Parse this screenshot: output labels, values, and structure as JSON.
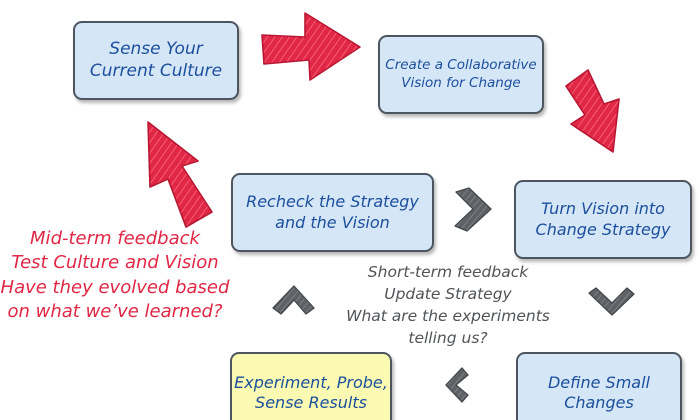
{
  "diagram": {
    "boxes": {
      "sense_culture": "Sense Your\nCurrent Culture",
      "collaborative_vision": "Create a Collaborative\nVision for Change",
      "change_strategy": "Turn Vision into\nChange Strategy",
      "recheck_strategy": "Recheck the Strategy\nand the Vision",
      "experiment": "Experiment, Probe,\nSense Results",
      "small_changes": "Define Small\nChanges"
    },
    "midterm_feedback": "Mid-term feedback\nTest Culture and Vision\nHave they evolved based\non what we’ve learned?",
    "shortterm_feedback": "Short-term feedback\nUpdate Strategy\nWhat are the experiments\ntelling us?"
  },
  "colors": {
    "box_fill": "#d5e6f7",
    "box_fill_highlight": "#fafab2",
    "box_text": "#1c4f9c",
    "red_arrow": "#e02745",
    "red_text": "#e02745",
    "gray_text": "#505458"
  }
}
